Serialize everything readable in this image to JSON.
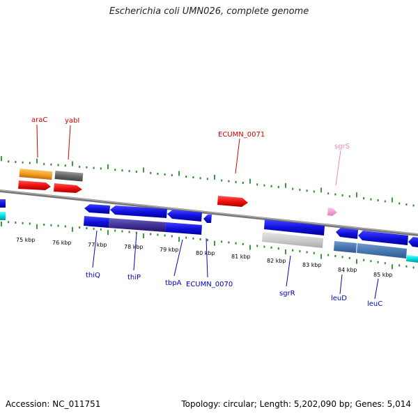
{
  "title": "Escherichia coli UMN026, complete genome",
  "footer": {
    "accession": "Accession: NC_011751",
    "summary": "Topology: circular; Length: 5,202,090 bp; Genes: 5,014"
  },
  "scale": {
    "labels": [
      "75 kbp",
      "76 kbp",
      "77 kbp",
      "78 kbp",
      "79 kbp",
      "80 kbp",
      "81 kbp",
      "82 kbp",
      "83 kbp",
      "84 kbp",
      "85 kbp"
    ]
  },
  "colors": {
    "forward_cds": "#ee1111",
    "reverse_cds": "#1111dd",
    "cyan_cds": "#00dddd",
    "orange_gene": "#f5a021",
    "grey_gene": "#777777",
    "pink_gene": "#f7a6d9",
    "tick": "#2a8a2a",
    "backbone": "#888888",
    "label_red": "#cc0000",
    "label_blue": "#0000bb",
    "label_pink": "#ee88bb"
  },
  "gene_labels": {
    "top": [
      {
        "name": "araC",
        "color": "red"
      },
      {
        "name": "yabI",
        "color": "red"
      },
      {
        "name": "ECUMN_0071",
        "color": "red"
      },
      {
        "name": "sgrS",
        "color": "pink"
      }
    ],
    "bottom": [
      {
        "name": "thiQ",
        "color": "blue"
      },
      {
        "name": "thiP",
        "color": "blue"
      },
      {
        "name": "tbpA",
        "color": "blue"
      },
      {
        "name": "ECUMN_0070",
        "color": "blue"
      },
      {
        "name": "sgrR",
        "color": "blue"
      },
      {
        "name": "leuD",
        "color": "blue"
      },
      {
        "name": "leuC",
        "color": "blue"
      }
    ]
  }
}
